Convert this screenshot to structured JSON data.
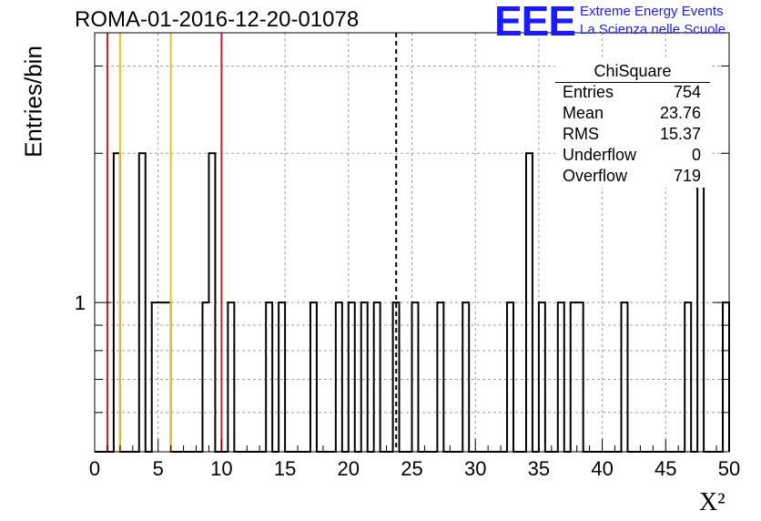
{
  "header": {
    "title": "ROMA-01-2016-12-20-01078",
    "logo_text": "EEE",
    "logo_line1": "Extreme Energy Events",
    "logo_line2": "La Scienza nelle Scuole"
  },
  "stats": {
    "name": "ChiSquare",
    "rows": [
      {
        "label": "Entries",
        "value": "754"
      },
      {
        "label": "Mean",
        "value": "23.76"
      },
      {
        "label": "RMS",
        "value": "15.37"
      },
      {
        "label": "Underflow",
        "value": "0"
      },
      {
        "label": "Overflow",
        "value": "719"
      }
    ]
  },
  "chart_data": {
    "type": "bar",
    "subtype": "histogram-step",
    "title": "ROMA-01-2016-12-20-01078",
    "xlabel": "X²",
    "ylabel": "Entries/bin",
    "xlim": [
      0,
      50
    ],
    "ylim": [
      0.5,
      3.5
    ],
    "ylog": true,
    "grid": true,
    "bin_width": 0.5,
    "x_ticks": [
      0,
      5,
      10,
      15,
      20,
      25,
      30,
      35,
      40,
      45,
      50
    ],
    "y_tick_labels": [
      "1"
    ],
    "bins": [
      {
        "x": 1.5,
        "y": 2
      },
      {
        "x": 3.5,
        "y": 2
      },
      {
        "x": 4.5,
        "y": 1
      },
      {
        "x": 5.0,
        "y": 1
      },
      {
        "x": 5.5,
        "y": 1
      },
      {
        "x": 8.5,
        "y": 1
      },
      {
        "x": 9.0,
        "y": 2
      },
      {
        "x": 10.5,
        "y": 1
      },
      {
        "x": 13.5,
        "y": 1
      },
      {
        "x": 14.5,
        "y": 1
      },
      {
        "x": 17.0,
        "y": 1
      },
      {
        "x": 19.0,
        "y": 1
      },
      {
        "x": 20.0,
        "y": 1
      },
      {
        "x": 21.0,
        "y": 1
      },
      {
        "x": 22.0,
        "y": 1
      },
      {
        "x": 23.5,
        "y": 1
      },
      {
        "x": 25.0,
        "y": 1
      },
      {
        "x": 27.0,
        "y": 1
      },
      {
        "x": 29.0,
        "y": 1
      },
      {
        "x": 32.5,
        "y": 1
      },
      {
        "x": 34.0,
        "y": 2
      },
      {
        "x": 35.0,
        "y": 1
      },
      {
        "x": 36.5,
        "y": 1
      },
      {
        "x": 37.5,
        "y": 1
      },
      {
        "x": 38.0,
        "y": 1
      },
      {
        "x": 41.5,
        "y": 1
      },
      {
        "x": 46.5,
        "y": 1
      },
      {
        "x": 47.5,
        "y": 2
      },
      {
        "x": 49.5,
        "y": 1
      }
    ],
    "reference_lines": [
      {
        "x": 1.0,
        "color": "#e0191b",
        "style": "solid"
      },
      {
        "x": 2.0,
        "color": "#f2c01e",
        "style": "solid"
      },
      {
        "x": 6.0,
        "color": "#f2c01e",
        "style": "solid"
      },
      {
        "x": 10.0,
        "color": "#e0191b",
        "style": "solid"
      },
      {
        "x": 23.76,
        "color": "#000000",
        "style": "dashed"
      }
    ]
  }
}
